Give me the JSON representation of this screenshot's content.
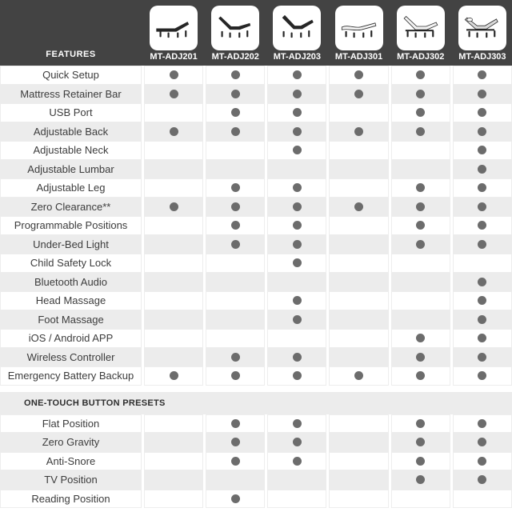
{
  "header": {
    "features_label": "FEATURES",
    "models": [
      {
        "name": "MT-ADJ201",
        "icon": "bed-flat-dark-icon"
      },
      {
        "name": "MT-ADJ202",
        "icon": "bed-head-foot-low-dark-icon"
      },
      {
        "name": "MT-ADJ203",
        "icon": "bed-head-foot-high-dark-icon"
      },
      {
        "name": "MT-ADJ301",
        "icon": "bed-flat-light-icon"
      },
      {
        "name": "MT-ADJ302",
        "icon": "bed-head-high-light-icon"
      },
      {
        "name": "MT-ADJ303",
        "icon": "bed-head-foot-light-icon"
      }
    ]
  },
  "table": {
    "feature_rows": [
      {
        "label": "Quick Setup",
        "dots": [
          1,
          1,
          1,
          1,
          1,
          1
        ]
      },
      {
        "label": "Mattress Retainer Bar",
        "dots": [
          1,
          1,
          1,
          1,
          1,
          1
        ]
      },
      {
        "label": "USB Port",
        "dots": [
          0,
          1,
          1,
          0,
          1,
          1
        ]
      },
      {
        "label": "Adjustable Back",
        "dots": [
          1,
          1,
          1,
          1,
          1,
          1
        ]
      },
      {
        "label": "Adjustable Neck",
        "dots": [
          0,
          0,
          1,
          0,
          0,
          1
        ]
      },
      {
        "label": "Adjustable Lumbar",
        "dots": [
          0,
          0,
          0,
          0,
          0,
          1
        ]
      },
      {
        "label": "Adjustable Leg",
        "dots": [
          0,
          1,
          1,
          0,
          1,
          1
        ]
      },
      {
        "label": "Zero Clearance**",
        "dots": [
          1,
          1,
          1,
          1,
          1,
          1
        ]
      },
      {
        "label": "Programmable Positions",
        "dots": [
          0,
          1,
          1,
          0,
          1,
          1
        ]
      },
      {
        "label": "Under-Bed Light",
        "dots": [
          0,
          1,
          1,
          0,
          1,
          1
        ]
      },
      {
        "label": "Child Safety Lock",
        "dots": [
          0,
          0,
          1,
          0,
          0,
          0
        ]
      },
      {
        "label": "Bluetooth Audio",
        "dots": [
          0,
          0,
          0,
          0,
          0,
          1
        ]
      },
      {
        "label": "Head Massage",
        "dots": [
          0,
          0,
          1,
          0,
          0,
          1
        ]
      },
      {
        "label": "Foot Massage",
        "dots": [
          0,
          0,
          1,
          0,
          0,
          1
        ]
      },
      {
        "label": "iOS / Android APP",
        "dots": [
          0,
          0,
          0,
          0,
          1,
          1
        ]
      },
      {
        "label": "Wireless Controller",
        "dots": [
          0,
          1,
          1,
          0,
          1,
          1
        ]
      },
      {
        "label": "Emergency Battery Backup",
        "dots": [
          1,
          1,
          1,
          1,
          1,
          1
        ]
      }
    ],
    "section_title": "ONE-TOUCH BUTTON PRESETS",
    "preset_rows": [
      {
        "label": "Flat Position",
        "dots": [
          0,
          1,
          1,
          0,
          1,
          1
        ]
      },
      {
        "label": "Zero Gravity",
        "dots": [
          0,
          1,
          1,
          0,
          1,
          1
        ]
      },
      {
        "label": "Anti-Snore",
        "dots": [
          0,
          1,
          1,
          0,
          1,
          1
        ]
      },
      {
        "label": "TV Position",
        "dots": [
          0,
          0,
          0,
          0,
          1,
          1
        ]
      },
      {
        "label": "Reading Position",
        "dots": [
          0,
          1,
          0,
          0,
          0,
          0
        ]
      }
    ]
  },
  "colors": {
    "header_bg": "#434343",
    "header_text": "#ffffff",
    "tile_bg": "#ffffff",
    "row_alt_bg": "#ececec",
    "dot": "#6c6c6c",
    "label_text": "#3c3c3c"
  }
}
